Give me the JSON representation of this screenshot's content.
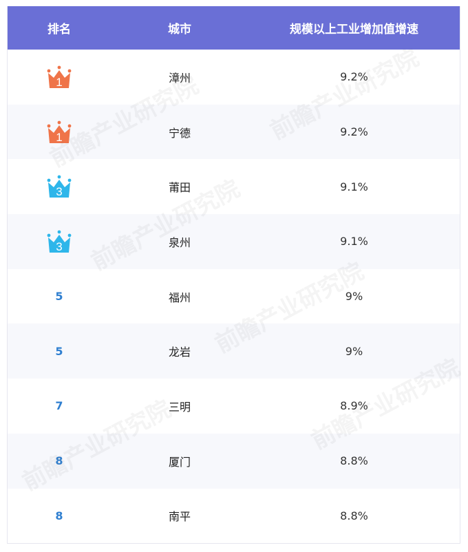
{
  "chart_data": {
    "type": "table",
    "columns": [
      "排名",
      "城市",
      "规模以上工业增加值增速"
    ],
    "rows": [
      {
        "rank": "1",
        "city": "漳州",
        "value": "9.2%",
        "badge": "crown",
        "color": "#ef7449"
      },
      {
        "rank": "1",
        "city": "宁德",
        "value": "9.2%",
        "badge": "crown",
        "color": "#ef7449"
      },
      {
        "rank": "3",
        "city": "莆田",
        "value": "9.1%",
        "badge": "crown",
        "color": "#2eb6ea"
      },
      {
        "rank": "3",
        "city": "泉州",
        "value": "9.1%",
        "badge": "crown",
        "color": "#2eb6ea"
      },
      {
        "rank": "5",
        "city": "福州",
        "value": "9%",
        "badge": "",
        "color": "#2f7fd0"
      },
      {
        "rank": "5",
        "city": "龙岩",
        "value": "9%",
        "badge": "",
        "color": "#2f7fd0"
      },
      {
        "rank": "7",
        "city": "三明",
        "value": "8.9%",
        "badge": "",
        "color": "#2f7fd0"
      },
      {
        "rank": "8",
        "city": "厦门",
        "value": "8.8%",
        "badge": "",
        "color": "#2f7fd0"
      },
      {
        "rank": "8",
        "city": "南平",
        "value": "8.8%",
        "badge": "",
        "color": "#2f7fd0"
      }
    ]
  },
  "watermark": "前瞻产业研究院"
}
